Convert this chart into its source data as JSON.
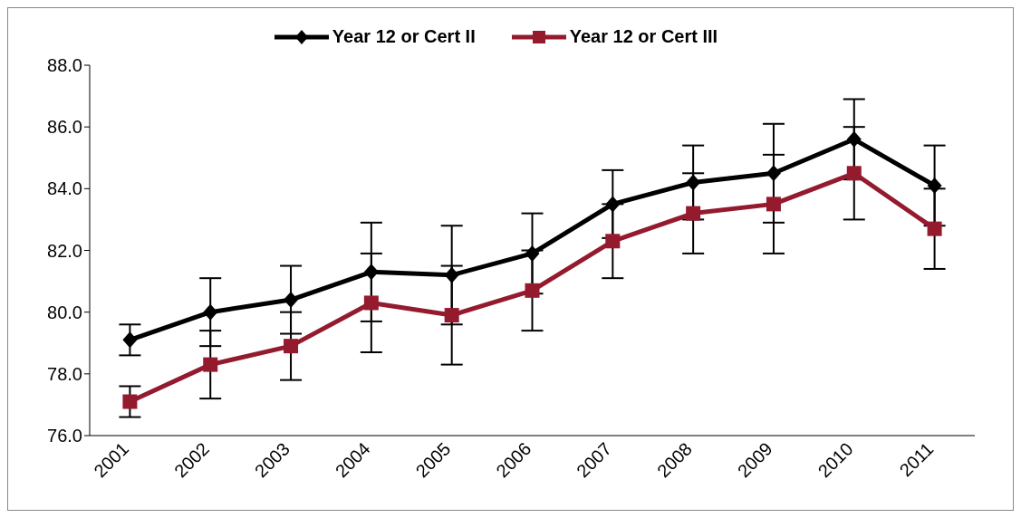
{
  "chart_data": {
    "type": "line",
    "categories": [
      "2001",
      "2002",
      "2003",
      "2004",
      "2005",
      "2006",
      "2007",
      "2008",
      "2009",
      "2010",
      "2011"
    ],
    "series": [
      {
        "name": "Year 12 or Cert II",
        "color": "#000000",
        "marker": "diamond",
        "values": [
          79.1,
          80.0,
          80.4,
          81.3,
          81.2,
          81.9,
          83.5,
          84.2,
          84.5,
          85.6,
          84.1
        ],
        "errors": [
          0.5,
          1.1,
          1.1,
          1.6,
          1.6,
          1.3,
          1.1,
          1.2,
          1.6,
          1.3,
          1.3
        ]
      },
      {
        "name": "Year 12 or Cert III",
        "color": "#941a2e",
        "marker": "square",
        "values": [
          77.1,
          78.3,
          78.9,
          80.3,
          79.9,
          80.7,
          82.3,
          83.2,
          83.5,
          84.5,
          82.7
        ],
        "errors": [
          0.5,
          1.1,
          1.1,
          1.6,
          1.6,
          1.3,
          1.2,
          1.3,
          1.6,
          1.5,
          1.3
        ]
      }
    ],
    "ylim": [
      76,
      88
    ],
    "yticks": [
      {
        "value": 76,
        "label": "76.0"
      },
      {
        "value": 78,
        "label": "78.0"
      },
      {
        "value": 80,
        "label": "80.0"
      },
      {
        "value": 82,
        "label": "82.0"
      },
      {
        "value": 84,
        "label": "84.0"
      },
      {
        "value": 86,
        "label": "86.0"
      },
      {
        "value": 88,
        "label": "88.0"
      }
    ],
    "grid": false,
    "legend": "top",
    "line_style": "solid"
  }
}
